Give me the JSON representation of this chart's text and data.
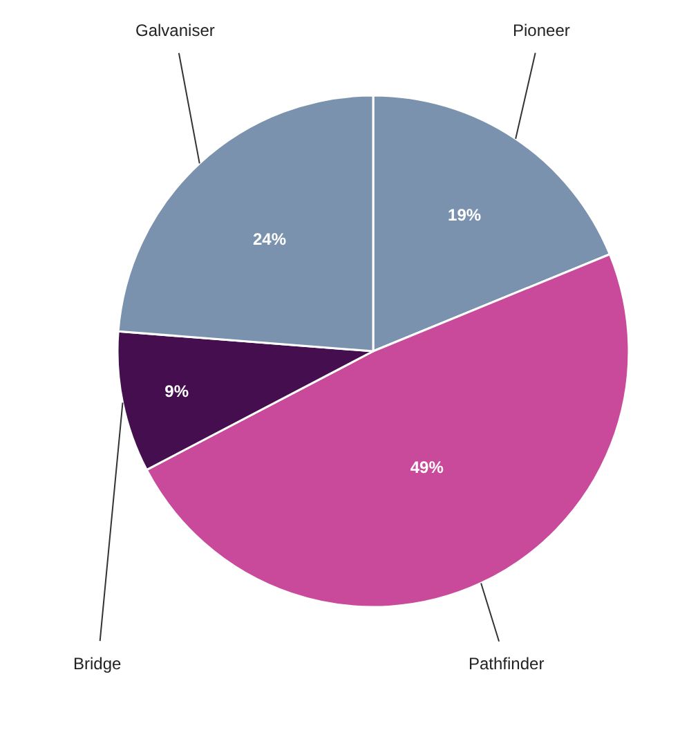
{
  "chart_data": {
    "type": "pie",
    "categories": [
      "Pioneer",
      "Pathfinder",
      "Bridge",
      "Galvaniser"
    ],
    "values": [
      19,
      49,
      9,
      24
    ],
    "colors": [
      "#7a92ad",
      "#c94a9b",
      "#450f4f",
      "#7a92ad"
    ],
    "value_labels": [
      "19%",
      "49%",
      "9%",
      "24%"
    ]
  }
}
